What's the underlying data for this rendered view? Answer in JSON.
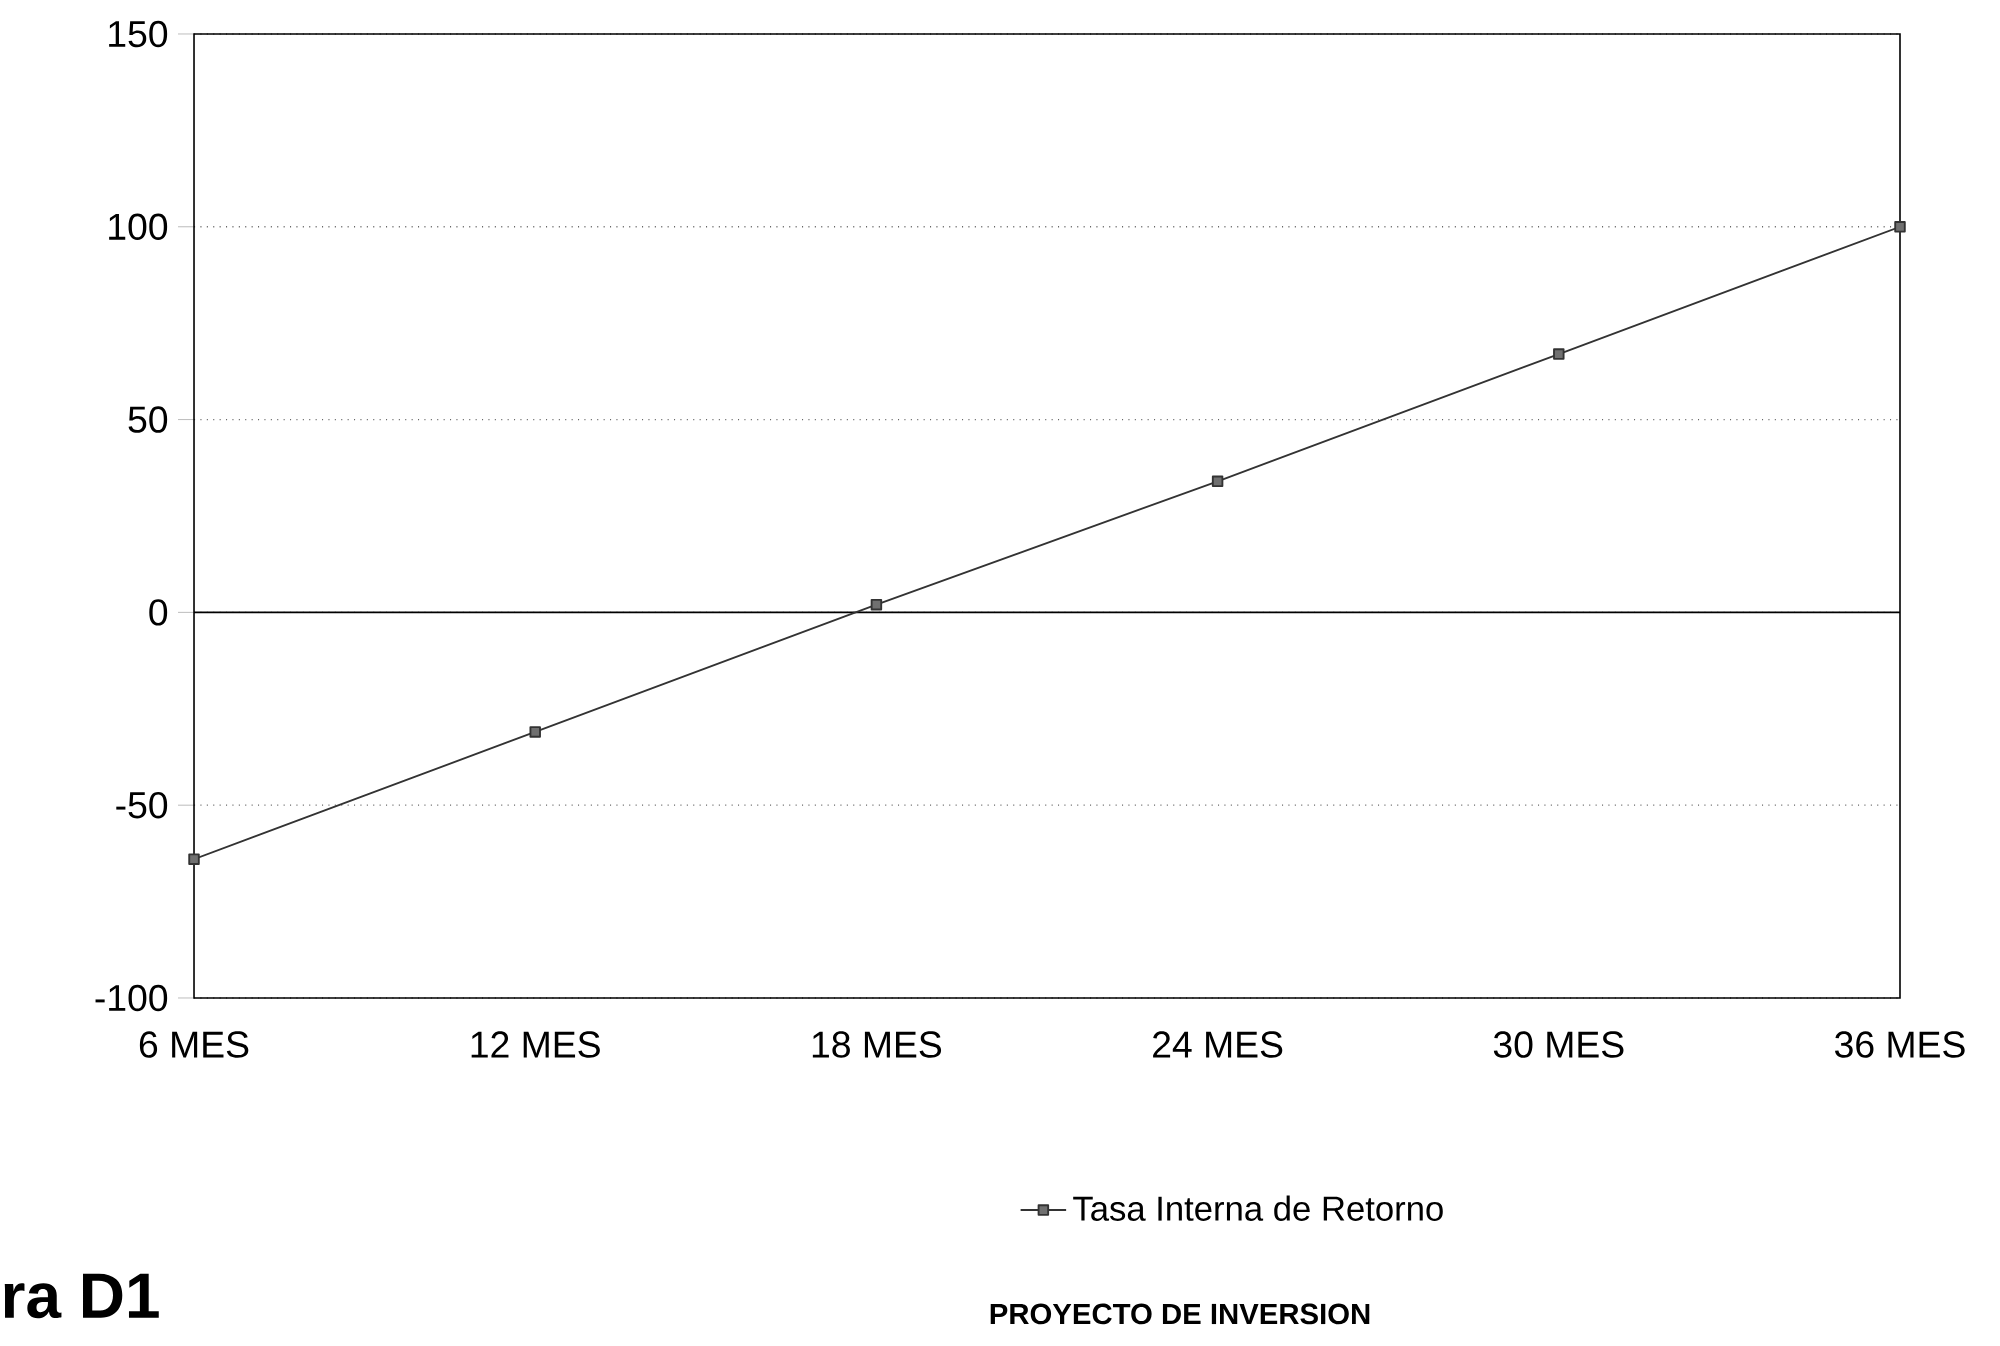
{
  "chart_data": {
    "type": "line",
    "categories": [
      "6 MES",
      "12 MES",
      "18 MES",
      "24 MES",
      "30 MES",
      "36 MES"
    ],
    "series": [
      {
        "name": "Tasa Interna de Retorno",
        "color": "#333333",
        "values": [
          -64,
          -31,
          2,
          34,
          67,
          100
        ]
      }
    ],
    "ylim": [
      -100,
      150
    ],
    "yticks": [
      -100,
      -50,
      0,
      50,
      100,
      150
    ],
    "grid": "y",
    "legend": "bottom",
    "marker": "square",
    "line_style": "solid",
    "ref_lines": [
      {
        "axis": "y",
        "value": 0,
        "color": "#000000",
        "line_style": "solid"
      }
    ],
    "annotations": [
      "ra D1",
      "PROYECTO DE INVERSION"
    ]
  }
}
